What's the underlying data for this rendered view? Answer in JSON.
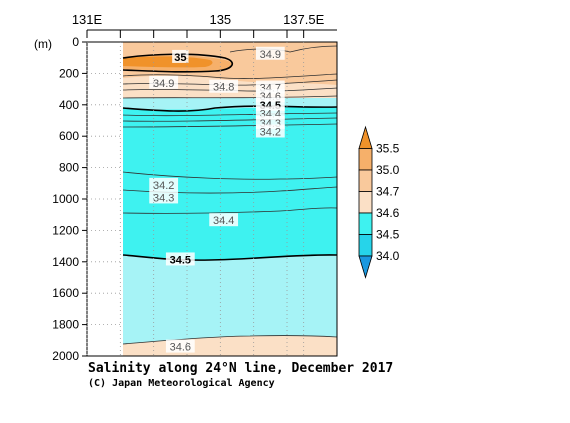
{
  "chart_data": {
    "type": "contour",
    "title": "Salinity along 24°N line, December 2017",
    "credit": "(C) Japan Meteorological Agency",
    "x_axis": {
      "label": "",
      "ticks": [
        {
          "value": 131,
          "label": "131E"
        },
        {
          "value": 132,
          "label": ""
        },
        {
          "value": 133,
          "label": ""
        },
        {
          "value": 134,
          "label": ""
        },
        {
          "value": 135,
          "label": "135"
        },
        {
          "value": 136,
          "label": ""
        },
        {
          "value": 137,
          "label": ""
        },
        {
          "value": 137.5,
          "label": "137.5E"
        }
      ],
      "range": [
        131,
        138.5
      ]
    },
    "y_axis": {
      "unit_label": "(m)",
      "ticks": [
        0,
        200,
        400,
        600,
        800,
        1000,
        1200,
        1400,
        1600,
        1800,
        2000
      ],
      "range": [
        0,
        2000
      ],
      "inverted": true
    },
    "data_range_x": [
      132.2,
      138.5
    ],
    "colorbar": {
      "levels": [
        "35.5",
        "35.0",
        "34.7",
        "34.6",
        "34.5",
        "34.0"
      ],
      "colors": [
        "#f0922a",
        "#f6b06a",
        "#f9c99c",
        "#fbe0c6",
        "#3ef2f0",
        "#26d4ea",
        "#1a98e0"
      ]
    },
    "contour_labels": [
      {
        "text": "35",
        "x": 133.8,
        "y": 95,
        "bold": true
      },
      {
        "text": "34.9",
        "x": 136.5,
        "y": 75,
        "bold": false
      },
      {
        "text": "34.9",
        "x": 133.3,
        "y": 260,
        "bold": false
      },
      {
        "text": "34.8",
        "x": 135.1,
        "y": 285,
        "bold": false
      },
      {
        "text": "34.7",
        "x": 136.5,
        "y": 290,
        "bold": false
      },
      {
        "text": "34.6",
        "x": 136.5,
        "y": 345,
        "bold": false
      },
      {
        "text": "34.5",
        "x": 136.5,
        "y": 400,
        "bold": true
      },
      {
        "text": "34.4",
        "x": 136.5,
        "y": 455,
        "bold": false
      },
      {
        "text": "34.3",
        "x": 136.5,
        "y": 515,
        "bold": false
      },
      {
        "text": "34.2",
        "x": 136.5,
        "y": 570,
        "bold": false
      },
      {
        "text": "34.2",
        "x": 133.3,
        "y": 910,
        "bold": false
      },
      {
        "text": "34.3",
        "x": 133.3,
        "y": 990,
        "bold": false
      },
      {
        "text": "34.4",
        "x": 135.1,
        "y": 1135,
        "bold": false
      },
      {
        "text": "34.5",
        "x": 133.8,
        "y": 1385,
        "bold": true
      },
      {
        "text": "34.6",
        "x": 133.8,
        "y": 1940,
        "bold": false
      }
    ]
  }
}
